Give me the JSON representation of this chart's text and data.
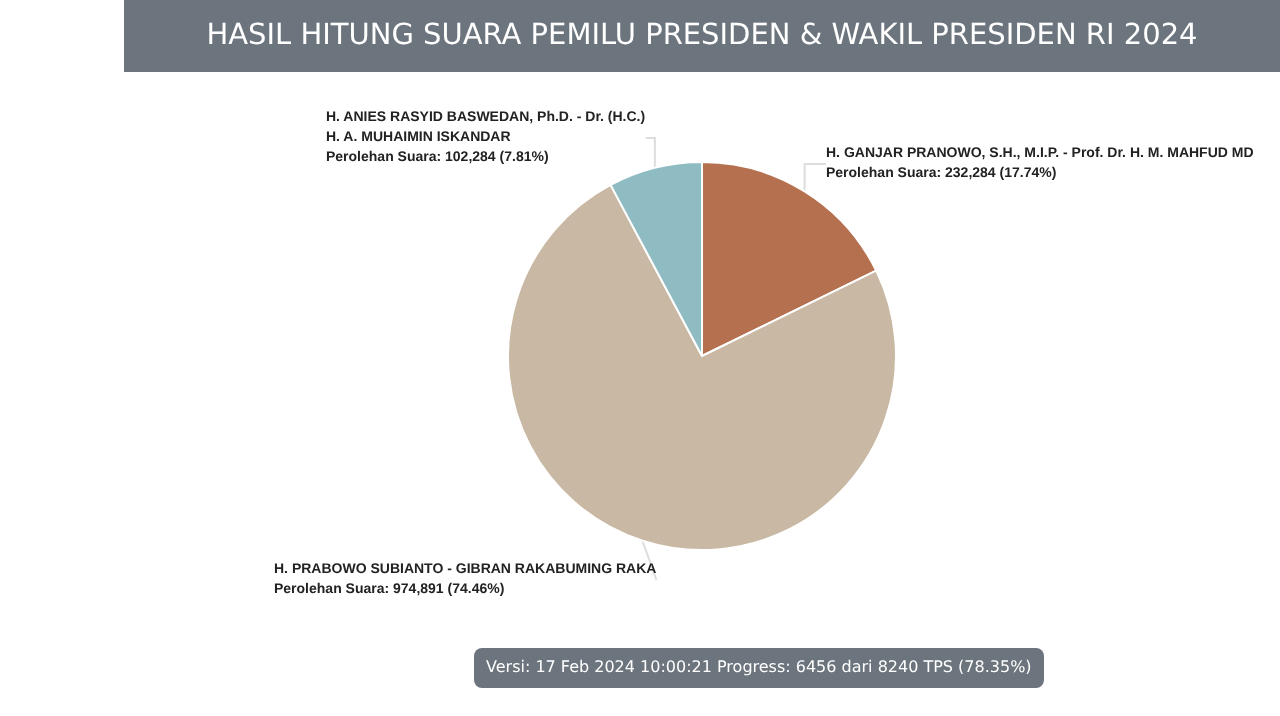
{
  "chart_data": {
    "type": "pie",
    "title": "HASIL HITUNG SUARA PEMILU PRESIDEN & WAKIL PRESIDEN RI 2024",
    "categories": [
      "H. GANJAR PRANOWO, S.H., M.I.P. - Prof. Dr. H. M. MAHFUD MD",
      "H. PRABOWO SUBIANTO - GIBRAN RAKABUMING RAKA",
      "H. ANIES RASYID BASWEDAN, Ph.D. - Dr. (H.C.)\nH. A. MUHAIMIN ISKANDAR"
    ],
    "values": [
      232284,
      974891,
      102284
    ],
    "colors": [
      "#b5704f",
      "#c9b8a3",
      "#8fbcc3"
    ],
    "value_labels": [
      "Perolehan Suara: 232,284 (17.74%)",
      "Perolehan Suara: 974,891 (74.46%)",
      "Perolehan Suara: 102,284 (7.81%)"
    ],
    "annotations": [
      "Versi: 17 Feb 2024 10:00:21 Progress: 6456 dari 8240 TPS (78.35%)"
    ],
    "legend": false
  }
}
